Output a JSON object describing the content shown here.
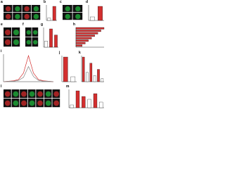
{
  "panels": [
    {
      "label": "a"
    },
    {
      "label": "b",
      "bars": {
        "values": [
          1,
          6
        ],
        "colors": [
          "#ffffff",
          "#d32f2f"
        ]
      }
    },
    {
      "label": "c"
    },
    {
      "label": "d",
      "bars": {
        "values": [
          1,
          4
        ],
        "colors": [
          "#ffffff",
          "#d32f2f"
        ]
      }
    },
    {
      "label": "e"
    },
    {
      "label": "f"
    },
    {
      "label": "g",
      "bars": {
        "values": [
          1,
          3,
          2
        ],
        "colors": [
          "#ffffff",
          "#d32f2f",
          "#d32f2f"
        ]
      }
    },
    {
      "label": "h",
      "bars": {
        "values": [
          9,
          8,
          7,
          6,
          5,
          4,
          3,
          2
        ],
        "colors": [
          "#d32f2f",
          "#d32f2f",
          "#d32f2f",
          "#d32f2f",
          "#d32f2f",
          "#d32f2f",
          "#d32f2f",
          "#d32f2f"
        ]
      }
    },
    {
      "label": "i",
      "lines": {
        "x": [
          0,
          1,
          2,
          3,
          4,
          5,
          6,
          7,
          8,
          9,
          10
        ],
        "series": [
          {
            "color": "#d32f2f",
            "values": [
              0,
              1,
              2,
              5,
              20,
              60,
              20,
              5,
              2,
              1,
              0
            ]
          },
          {
            "color": "#888888",
            "values": [
              0,
              1,
              1,
              3,
              10,
              35,
              12,
              3,
              1,
              1,
              0
            ]
          }
        ]
      }
    },
    {
      "label": "j",
      "bars": {
        "values": [
          5,
          1
        ],
        "colors": [
          "#d32f2f",
          "#ffffff"
        ]
      }
    },
    {
      "label": "k",
      "bars": {
        "values": [
          8,
          3,
          6,
          2,
          4,
          1
        ],
        "colors": [
          "#d32f2f",
          "#ffffff",
          "#d32f2f",
          "#ffffff",
          "#d32f2f",
          "#ffffff"
        ]
      }
    },
    {
      "label": "l"
    },
    {
      "label": "m",
      "bars": {
        "values": [
          1,
          6,
          4,
          3,
          5,
          2
        ],
        "colors": [
          "#ffffff",
          "#d32f2f",
          "#d32f2f",
          "#ffffff",
          "#d32f2f",
          "#ffffff"
        ]
      }
    }
  ]
}
